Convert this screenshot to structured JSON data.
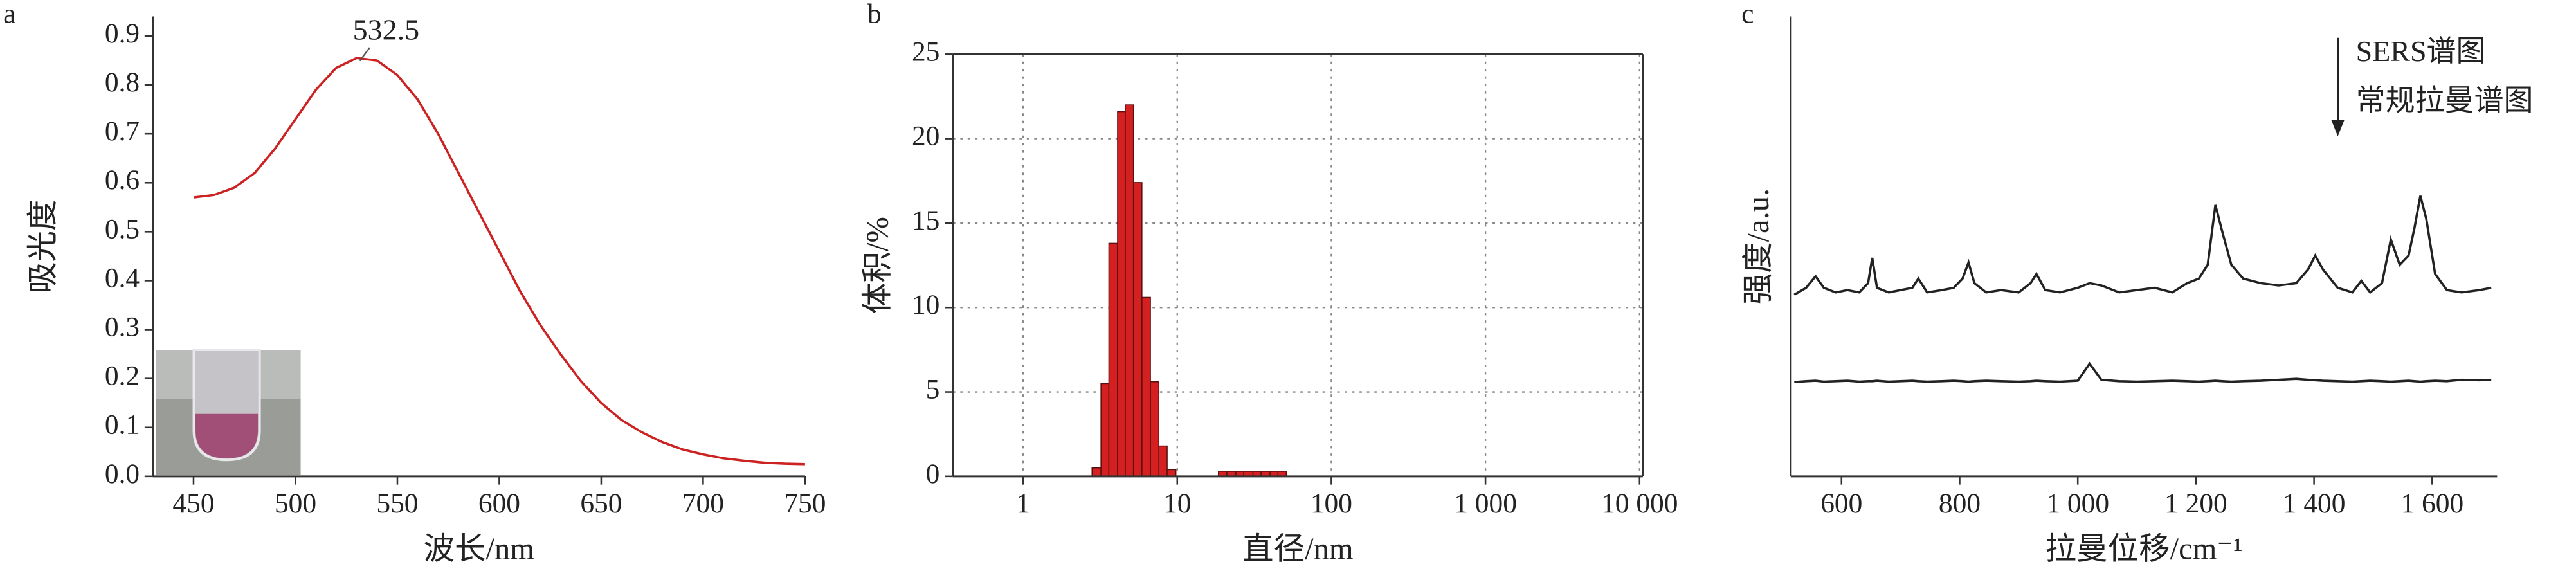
{
  "chart_data": [
    {
      "type": "line",
      "panel_label": "a",
      "xlabel": "波长/nm",
      "ylabel": "吸光度",
      "annotation": "532.5",
      "x": [
        450,
        460,
        470,
        480,
        490,
        500,
        510,
        520,
        530,
        540,
        550,
        560,
        570,
        580,
        590,
        600,
        610,
        620,
        630,
        640,
        650,
        660,
        670,
        680,
        690,
        700,
        710,
        720,
        730,
        740,
        750
      ],
      "series": [
        {
          "color": "#cc2222",
          "values": [
            0.57,
            0.575,
            0.59,
            0.62,
            0.67,
            0.73,
            0.79,
            0.835,
            0.855,
            0.85,
            0.82,
            0.77,
            0.7,
            0.62,
            0.54,
            0.46,
            0.38,
            0.31,
            0.25,
            0.195,
            0.15,
            0.115,
            0.09,
            0.07,
            0.055,
            0.045,
            0.037,
            0.032,
            0.028,
            0.026,
            0.025
          ]
        }
      ],
      "xlim": [
        430,
        750
      ],
      "xticks": [
        450,
        500,
        550,
        600,
        650,
        700,
        750
      ],
      "ylim": [
        0,
        0.94
      ],
      "yticks": [
        {
          "value": 0,
          "label": "0.0"
        },
        0.1,
        0.2,
        0.3,
        0.4,
        0.5,
        0.6,
        0.7,
        0.8,
        0.9
      ],
      "grid": false,
      "box": false
    },
    {
      "type": "histogram",
      "panel_label": "b",
      "xlabel": "直径/nm",
      "ylabel": "体积/%",
      "xscale": "log",
      "bins": [
        2.8,
        3.2,
        3.6,
        4.1,
        4.6,
        5.2,
        5.9,
        6.7,
        7.6,
        8.6,
        9.8,
        11.1,
        12.6,
        14.3,
        16.3,
        18.5,
        21,
        24,
        27,
        31,
        35,
        40,
        45,
        51
      ],
      "values": [
        0.5,
        5.5,
        13.8,
        21.6,
        22.0,
        17.4,
        10.6,
        5.6,
        1.8,
        0.4,
        0,
        0,
        0,
        0,
        0,
        0.3,
        0.3,
        0.3,
        0.3,
        0.3,
        0.3,
        0.3,
        0.3
      ],
      "color": "#d42020",
      "xlim": [
        0.35,
        10500
      ],
      "xticks": [
        1,
        10,
        100,
        {
          "value": 1000,
          "label": "1 000"
        },
        {
          "value": 10000,
          "label": "10 000"
        }
      ],
      "ylim": [
        0,
        25
      ],
      "yticks": [
        0,
        5,
        10,
        15,
        20,
        25
      ],
      "grid": true,
      "box": true
    },
    {
      "type": "line",
      "panel_label": "c",
      "xlabel": "拉曼位移/cm⁻¹",
      "ylabel": "强度/a.u.",
      "x": [
        520,
        540,
        556,
        570,
        590,
        610,
        630,
        645,
        652,
        660,
        680,
        700,
        720,
        730,
        745,
        770,
        790,
        805,
        815,
        825,
        845,
        870,
        900,
        920,
        930,
        945,
        970,
        1000,
        1020,
        1040,
        1070,
        1100,
        1130,
        1160,
        1185,
        1205,
        1220,
        1233,
        1245,
        1260,
        1280,
        1310,
        1340,
        1370,
        1390,
        1402,
        1415,
        1440,
        1465,
        1480,
        1495,
        1515,
        1530,
        1545,
        1560,
        1570,
        1580,
        1590,
        1605,
        1625,
        1650,
        1680,
        1700
      ],
      "series": [
        {
          "name": "SERS谱图",
          "color": "#222222",
          "values": [
            3.95,
            4.1,
            4.35,
            4.1,
            4.0,
            4.05,
            4.0,
            4.2,
            4.75,
            4.1,
            4.0,
            4.05,
            4.1,
            4.3,
            4.0,
            4.05,
            4.1,
            4.3,
            4.65,
            4.2,
            4.0,
            4.05,
            4.0,
            4.2,
            4.4,
            4.05,
            4.0,
            4.1,
            4.2,
            4.15,
            4.0,
            4.05,
            4.1,
            4.0,
            4.2,
            4.3,
            4.6,
            5.9,
            5.3,
            4.6,
            4.3,
            4.2,
            4.15,
            4.2,
            4.5,
            4.8,
            4.5,
            4.1,
            4.0,
            4.25,
            4.0,
            4.2,
            5.15,
            4.6,
            4.8,
            5.4,
            6.1,
            5.6,
            4.4,
            4.05,
            4.0,
            4.05,
            4.1
          ]
        },
        {
          "name": "常规拉曼谱图",
          "color": "#222222",
          "values": [
            2.05,
            2.07,
            2.08,
            2.06,
            2.07,
            2.08,
            2.06,
            2.07,
            2.07,
            2.08,
            2.06,
            2.07,
            2.08,
            2.07,
            2.06,
            2.07,
            2.08,
            2.07,
            2.06,
            2.07,
            2.08,
            2.07,
            2.06,
            2.07,
            2.08,
            2.07,
            2.06,
            2.08,
            2.45,
            2.1,
            2.07,
            2.06,
            2.07,
            2.08,
            2.07,
            2.06,
            2.07,
            2.08,
            2.07,
            2.06,
            2.07,
            2.08,
            2.1,
            2.12,
            2.1,
            2.09,
            2.08,
            2.07,
            2.06,
            2.07,
            2.08,
            2.07,
            2.06,
            2.07,
            2.08,
            2.07,
            2.06,
            2.07,
            2.08,
            2.07,
            2.1,
            2.09,
            2.1
          ]
        }
      ],
      "xlim": [
        514,
        1710
      ],
      "xticks": [
        600,
        800,
        {
          "value": 1000,
          "label": "1 000"
        },
        {
          "value": 1200,
          "label": "1 200"
        },
        {
          "value": 1400,
          "label": "1 400"
        },
        {
          "value": 1600,
          "label": "1 600"
        }
      ],
      "ylim": [
        0,
        10
      ],
      "grid": false,
      "box": false,
      "legend": "top-right"
    }
  ]
}
